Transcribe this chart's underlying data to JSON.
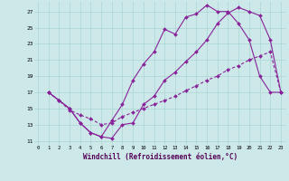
{
  "xlabel": "Windchill (Refroidissement éolien,°C)",
  "bg_color": "#cce8e8",
  "grid_color": "#aad4d4",
  "line_color": "#882299",
  "x_ticks": [
    0,
    1,
    2,
    3,
    4,
    5,
    6,
    7,
    8,
    9,
    10,
    11,
    12,
    13,
    14,
    15,
    16,
    17,
    18,
    19,
    20,
    21,
    22,
    23
  ],
  "y_ticks": [
    11,
    13,
    15,
    17,
    19,
    21,
    23,
    25,
    27
  ],
  "xlim": [
    -0.3,
    23.5
  ],
  "ylim": [
    10.5,
    28.2
  ],
  "line1_x": [
    1,
    2,
    3,
    4,
    5,
    6,
    7,
    8,
    9,
    10,
    11,
    12,
    13,
    14,
    15,
    16,
    17,
    18,
    19,
    20,
    21,
    22,
    23
  ],
  "line1_y": [
    17.0,
    16.0,
    15.0,
    13.2,
    12.0,
    11.5,
    11.3,
    13.0,
    13.2,
    15.5,
    16.5,
    18.5,
    19.5,
    20.8,
    22.0,
    23.5,
    25.5,
    26.8,
    27.5,
    27.0,
    26.5,
    23.5,
    17.0
  ],
  "line2_x": [
    1,
    2,
    3,
    4,
    5,
    6,
    7,
    8,
    9,
    10,
    11,
    12,
    13,
    14,
    15,
    16,
    17,
    18,
    19,
    20,
    21,
    22,
    23
  ],
  "line2_y": [
    17.0,
    16.0,
    15.0,
    13.2,
    12.0,
    11.5,
    13.5,
    15.5,
    18.5,
    20.5,
    22.0,
    24.8,
    24.2,
    26.3,
    26.7,
    27.8,
    27.0,
    27.0,
    25.5,
    23.5,
    19.0,
    17.0,
    17.0
  ],
  "line3_x": [
    1,
    2,
    3,
    4,
    5,
    6,
    7,
    8,
    9,
    10,
    11,
    12,
    13,
    14,
    15,
    16,
    17,
    18,
    19,
    20,
    21,
    22,
    23
  ],
  "line3_y": [
    17.0,
    16.0,
    14.8,
    14.2,
    13.7,
    13.0,
    13.2,
    14.0,
    14.5,
    15.0,
    15.5,
    16.0,
    16.5,
    17.2,
    17.8,
    18.5,
    19.0,
    19.8,
    20.3,
    21.0,
    21.5,
    22.0,
    17.0
  ]
}
